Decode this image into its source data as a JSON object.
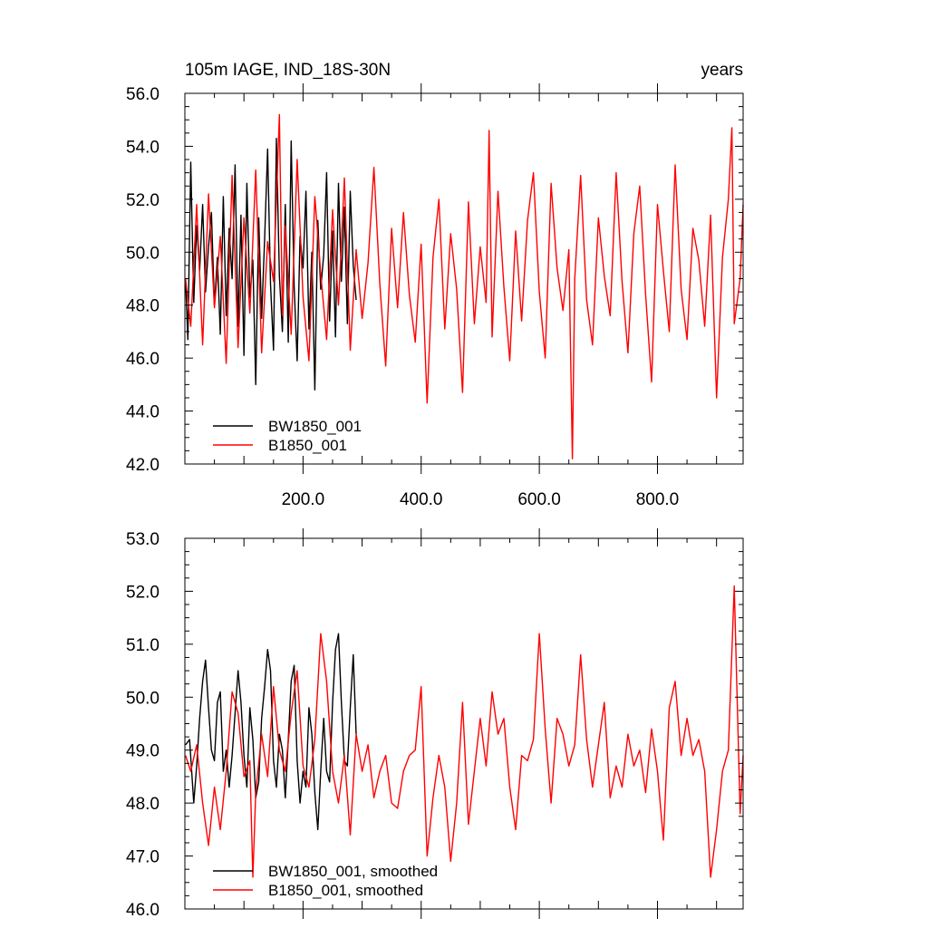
{
  "chart_data": [
    {
      "type": "line",
      "title_left": "105m IAGE, IND_18S-30N",
      "title_right": "years",
      "xlim": [
        0,
        945
      ],
      "ylim": [
        42.0,
        56.0
      ],
      "yticks": [
        42.0,
        44.0,
        46.0,
        48.0,
        50.0,
        52.0,
        54.0,
        56.0
      ],
      "ytick_labels": [
        "42.0",
        "44.0",
        "46.0",
        "48.0",
        "50.0",
        "52.0",
        "54.0",
        "56.0"
      ],
      "xticks": [
        200,
        400,
        600,
        800
      ],
      "xtick_labels": [
        "200.0",
        "400.0",
        "600.0",
        "800.0"
      ],
      "legend": "bottom-left",
      "series": [
        {
          "name": "BW1850_001",
          "color": "#000000",
          "x": [
            1,
            5,
            10,
            15,
            20,
            25,
            30,
            35,
            40,
            45,
            50,
            55,
            60,
            65,
            70,
            75,
            80,
            85,
            90,
            95,
            100,
            105,
            110,
            115,
            120,
            125,
            130,
            135,
            140,
            145,
            150,
            155,
            160,
            165,
            170,
            175,
            180,
            185,
            190,
            195,
            200,
            205,
            210,
            215,
            220,
            225,
            230,
            235,
            240,
            245,
            250,
            255,
            260,
            265,
            270,
            275,
            280,
            285,
            290
          ],
          "values": [
            49.0,
            46.7,
            53.4,
            48.1,
            51.0,
            49.3,
            51.8,
            48.5,
            50.2,
            51.5,
            48.0,
            49.8,
            46.9,
            52.1,
            47.6,
            50.9,
            49.0,
            53.3,
            47.2,
            51.4,
            46.1,
            52.6,
            48.3,
            49.7,
            45.0,
            51.3,
            47.5,
            50.5,
            53.9,
            48.8,
            46.3,
            54.3,
            49.1,
            47.0,
            51.8,
            46.6,
            54.2,
            48.7,
            45.9,
            50.6,
            49.4,
            52.3,
            47.1,
            50.0,
            44.8,
            51.2,
            48.6,
            49.9,
            53.0,
            47.4,
            50.8,
            46.8,
            52.6,
            48.9,
            51.7,
            47.3,
            52.3,
            49.5,
            48.2
          ]
        },
        {
          "name": "B1850_001",
          "color": "#ff0000",
          "x": [
            1,
            10,
            20,
            30,
            40,
            50,
            60,
            70,
            80,
            90,
            100,
            110,
            120,
            130,
            140,
            150,
            160,
            165,
            170,
            180,
            190,
            200,
            210,
            220,
            230,
            240,
            250,
            260,
            270,
            280,
            290,
            300,
            310,
            320,
            330,
            340,
            350,
            360,
            370,
            380,
            390,
            400,
            410,
            420,
            430,
            440,
            450,
            460,
            470,
            480,
            490,
            500,
            510,
            515,
            520,
            530,
            540,
            550,
            560,
            570,
            580,
            590,
            600,
            610,
            620,
            630,
            640,
            650,
            656,
            660,
            670,
            680,
            690,
            700,
            710,
            720,
            730,
            740,
            750,
            760,
            770,
            780,
            790,
            800,
            810,
            820,
            830,
            840,
            850,
            860,
            870,
            880,
            890,
            900,
            910,
            920,
            926,
            930,
            940,
            945
          ],
          "values": [
            49.0,
            47.2,
            51.8,
            46.5,
            52.2,
            47.9,
            50.6,
            45.8,
            52.9,
            46.4,
            51.3,
            47.7,
            53.1,
            46.2,
            50.4,
            48.9,
            55.2,
            47.6,
            51.0,
            46.9,
            53.5,
            48.3,
            45.9,
            52.1,
            49.2,
            46.7,
            51.6,
            48.0,
            52.8,
            46.3,
            50.1,
            47.5,
            49.6,
            53.2,
            48.8,
            45.7,
            50.9,
            47.9,
            51.5,
            48.4,
            46.6,
            50.3,
            44.3,
            49.8,
            52.0,
            47.1,
            50.7,
            48.6,
            44.7,
            51.9,
            47.3,
            50.2,
            48.1,
            54.6,
            46.8,
            52.3,
            48.7,
            45.9,
            50.8,
            47.4,
            51.2,
            53.0,
            48.5,
            46.0,
            52.6,
            49.4,
            47.8,
            50.1,
            42.2,
            49.0,
            52.9,
            48.2,
            46.5,
            51.3,
            49.1,
            47.6,
            53.0,
            48.9,
            46.2,
            50.7,
            52.5,
            48.4,
            45.1,
            51.8,
            49.3,
            47.0,
            53.3,
            48.6,
            46.7,
            50.9,
            49.7,
            47.2,
            51.4,
            44.5,
            49.8,
            52.0,
            54.7,
            47.3,
            49.0,
            51.8
          ]
        }
      ]
    },
    {
      "type": "line",
      "xlim": [
        0,
        945
      ],
      "ylim": [
        46.0,
        53.0
      ],
      "yticks": [
        46.0,
        47.0,
        48.0,
        49.0,
        50.0,
        51.0,
        52.0,
        53.0
      ],
      "ytick_labels": [
        "46.0",
        "47.0",
        "48.0",
        "49.0",
        "50.0",
        "51.0",
        "52.0",
        "53.0"
      ],
      "xticks": [
        200,
        400,
        600,
        800
      ],
      "legend": "bottom-left",
      "series": [
        {
          "name": "BW1850_001, smoothed",
          "color": "#000000",
          "x": [
            1,
            8,
            15,
            20,
            25,
            30,
            35,
            40,
            45,
            50,
            55,
            60,
            65,
            70,
            75,
            80,
            85,
            90,
            95,
            100,
            105,
            110,
            115,
            120,
            125,
            130,
            135,
            140,
            145,
            150,
            155,
            160,
            165,
            170,
            175,
            180,
            185,
            190,
            195,
            200,
            205,
            210,
            215,
            220,
            225,
            230,
            235,
            240,
            245,
            250,
            255,
            260,
            265,
            270,
            275,
            280,
            285,
            290
          ],
          "values": [
            49.1,
            49.2,
            48.0,
            48.7,
            49.6,
            50.3,
            50.7,
            49.8,
            49.0,
            48.8,
            49.9,
            50.1,
            48.6,
            49.0,
            48.3,
            48.9,
            49.7,
            50.5,
            49.9,
            48.9,
            48.3,
            49.8,
            49.2,
            48.1,
            48.4,
            49.6,
            50.2,
            50.9,
            50.5,
            48.8,
            48.3,
            49.3,
            49.0,
            48.1,
            49.2,
            50.3,
            50.6,
            48.8,
            48.0,
            48.6,
            48.3,
            49.8,
            49.3,
            48.2,
            47.5,
            48.6,
            49.6,
            48.6,
            48.4,
            49.9,
            50.9,
            51.2,
            49.9,
            48.8,
            48.7,
            49.8,
            50.8,
            49.3
          ]
        },
        {
          "name": "B1850_001, smoothed",
          "color": "#ff0000",
          "x": [
            1,
            10,
            20,
            30,
            40,
            50,
            60,
            70,
            80,
            90,
            100,
            110,
            115,
            120,
            130,
            140,
            150,
            160,
            170,
            180,
            190,
            200,
            210,
            220,
            230,
            240,
            250,
            260,
            270,
            280,
            290,
            300,
            310,
            320,
            330,
            340,
            350,
            360,
            370,
            380,
            390,
            400,
            410,
            420,
            430,
            440,
            450,
            460,
            470,
            480,
            490,
            500,
            510,
            520,
            530,
            540,
            550,
            560,
            570,
            580,
            590,
            600,
            610,
            620,
            630,
            640,
            650,
            660,
            670,
            680,
            690,
            700,
            710,
            720,
            730,
            740,
            750,
            760,
            770,
            780,
            790,
            800,
            810,
            820,
            830,
            840,
            850,
            860,
            870,
            880,
            890,
            900,
            910,
            920,
            930,
            940,
            945
          ],
          "values": [
            48.9,
            48.6,
            49.1,
            48.0,
            47.2,
            48.3,
            47.5,
            48.6,
            50.1,
            49.7,
            48.5,
            48.8,
            46.6,
            48.2,
            49.3,
            48.5,
            50.2,
            49.0,
            48.6,
            49.7,
            50.5,
            48.7,
            48.3,
            49.2,
            51.2,
            50.3,
            48.6,
            48.0,
            48.9,
            47.4,
            49.3,
            48.6,
            49.1,
            48.1,
            48.6,
            48.9,
            48.0,
            47.9,
            48.6,
            48.9,
            49.0,
            50.2,
            47.0,
            48.1,
            48.9,
            48.3,
            46.9,
            48.0,
            49.9,
            47.6,
            48.6,
            49.6,
            48.7,
            50.1,
            49.3,
            49.6,
            48.3,
            47.5,
            48.9,
            48.8,
            49.2,
            51.2,
            49.4,
            48.0,
            49.6,
            49.3,
            48.7,
            49.1,
            50.8,
            49.2,
            48.3,
            49.1,
            49.9,
            48.1,
            48.7,
            48.3,
            49.3,
            48.7,
            49.0,
            48.2,
            49.4,
            48.6,
            47.3,
            49.8,
            50.3,
            48.9,
            49.6,
            48.9,
            49.2,
            48.6,
            46.6,
            47.5,
            48.6,
            49.0,
            52.1,
            47.8,
            48.9
          ]
        }
      ]
    }
  ]
}
